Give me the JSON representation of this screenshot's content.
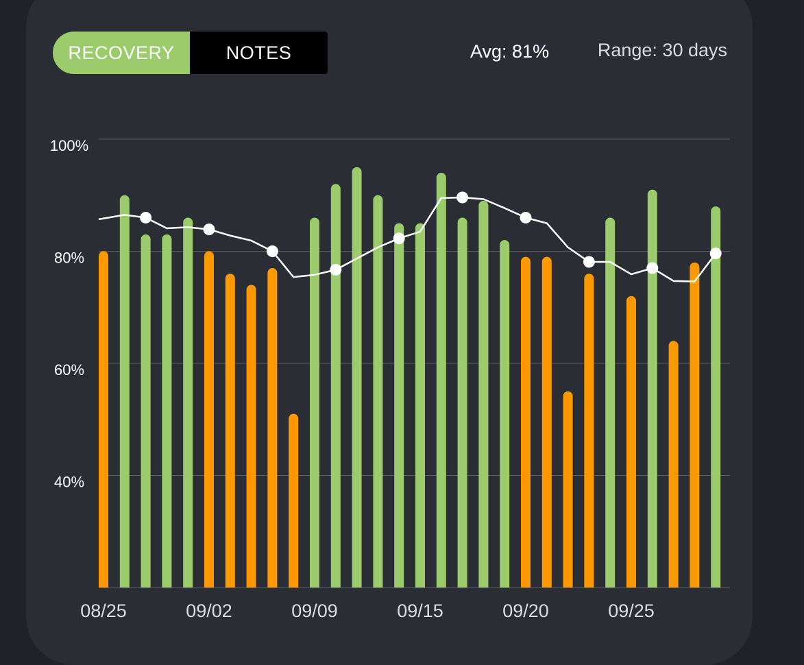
{
  "tabs": {
    "recovery_label": "RECOVERY",
    "notes_label": "NOTES"
  },
  "stats": {
    "avg_label": "Avg: 81%",
    "range_label": "Range: 30 days"
  },
  "colors": {
    "background": "#1f2328",
    "card": "#2a2e34",
    "good": "#9ccb6b",
    "warn": "#ff9900",
    "trend_line": "#ffffff",
    "grid": "#5b6066"
  },
  "chart_data": {
    "type": "bar",
    "ylim": [
      20,
      100
    ],
    "yticks": [
      100,
      80,
      60,
      40
    ],
    "ytick_labels": [
      "100%",
      "80%",
      "60%",
      "40%"
    ],
    "xtick_labels": [
      "08/25",
      "09/02",
      "09/09",
      "09/15",
      "09/20",
      "09/25"
    ],
    "xtick_index": [
      0,
      5,
      10,
      15,
      20,
      25
    ],
    "grid": true,
    "series": [
      {
        "values": [
          80,
          90,
          83,
          83,
          86,
          80,
          76,
          74,
          77,
          51,
          86,
          92,
          95,
          90,
          85,
          85,
          94,
          86,
          89,
          82,
          79,
          79,
          55,
          76,
          86,
          72,
          91,
          64,
          78,
          88
        ],
        "status": [
          "warn",
          "good",
          "good",
          "good",
          "good",
          "warn",
          "warn",
          "warn",
          "warn",
          "warn",
          "good",
          "good",
          "good",
          "good",
          "good",
          "good",
          "good",
          "good",
          "good",
          "good",
          "warn",
          "warn",
          "warn",
          "warn",
          "good",
          "warn",
          "good",
          "warn",
          "warn",
          "good"
        ]
      },
      {
        "type": "line",
        "values": [
          85.7,
          86.5,
          86,
          84.1,
          84.3,
          83.9,
          82.8,
          81.9,
          80,
          75.4,
          75.8,
          76.7,
          78.7,
          80.7,
          82.3,
          83.5,
          89.5,
          89.6,
          89.3,
          87.7,
          86,
          85,
          80.7,
          78.1,
          78.1,
          75.9,
          77,
          74.7,
          74.6,
          79.6
        ],
        "markers": [
          2,
          5,
          8,
          11,
          14,
          17,
          20,
          23,
          26,
          29
        ]
      }
    ]
  }
}
